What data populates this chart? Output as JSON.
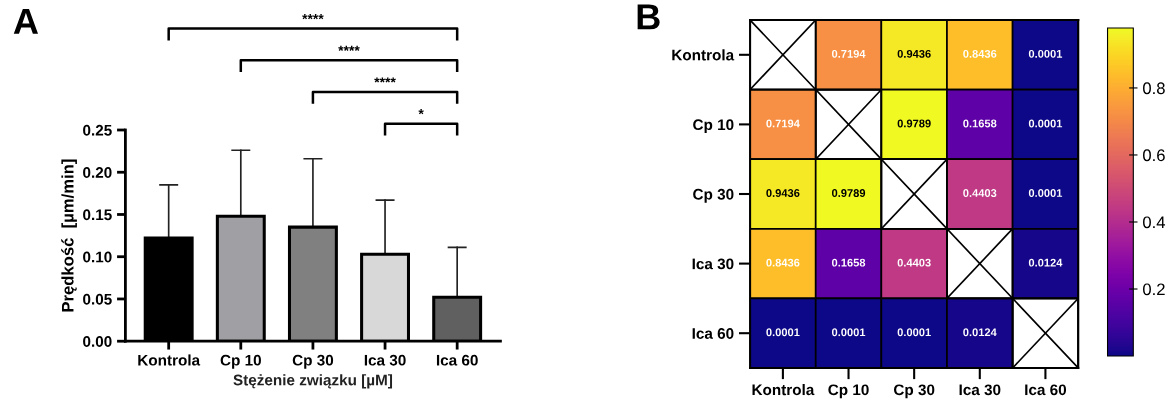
{
  "chart_data": [
    {
      "type": "bar",
      "title": "A",
      "xlabel": "Stężenie związku [µM]",
      "ylabel": "Prędkość  [µm/min]",
      "categories": [
        "Kontrola",
        "Cp 10",
        "Cp 30",
        "Ica 30",
        "Ica 60"
      ],
      "values": [
        0.122,
        0.148,
        0.135,
        0.103,
        0.052
      ],
      "errors": [
        [
          0.122,
          0.185
        ],
        [
          0.148,
          0.226
        ],
        [
          0.135,
          0.216
        ],
        [
          0.103,
          0.167
        ],
        [
          0.052,
          0.111
        ]
      ],
      "colors": [
        "#000000",
        "#a0a0a4",
        "#808080",
        "#d8d8d8",
        "#606060"
      ],
      "ylim": [
        0,
        0.25
      ],
      "yticks": [
        {
          "value": 0,
          "label": "0.00"
        },
        {
          "value": 0.05,
          "label": "0.05"
        },
        {
          "value": 0.1,
          "label": "0.10"
        },
        {
          "value": 0.15,
          "label": "0.15"
        },
        {
          "value": 0.2,
          "label": "0.20"
        },
        {
          "value": 0.25,
          "label": "0.25"
        }
      ],
      "annotations": [
        "****",
        "****",
        "****",
        "*"
      ],
      "grid": false
    },
    {
      "type": "heatmap",
      "title": "B",
      "categories": [
        "Kontrola",
        "Cp 10",
        "Cp 30",
        "Ica 30",
        "Ica 60"
      ],
      "y_categories": [
        "Kontrola",
        "Cp 10",
        "Cp 30",
        "Ica 30",
        "Ica 60"
      ],
      "cells": [
        [
          null,
          0.7194,
          0.9436,
          0.8436,
          0.0001
        ],
        [
          0.7194,
          null,
          0.9789,
          0.1658,
          0.0001
        ],
        [
          0.9436,
          0.9789,
          null,
          0.4403,
          0.0001
        ],
        [
          0.8436,
          0.1658,
          0.4403,
          null,
          0.0124
        ],
        [
          0.0001,
          0.0001,
          0.0001,
          0.0124,
          null
        ]
      ],
      "clim": [
        0.0001,
        0.9789
      ],
      "cticks": [
        0.2,
        0.4,
        0.6,
        0.8
      ],
      "data_labels": true
    }
  ]
}
